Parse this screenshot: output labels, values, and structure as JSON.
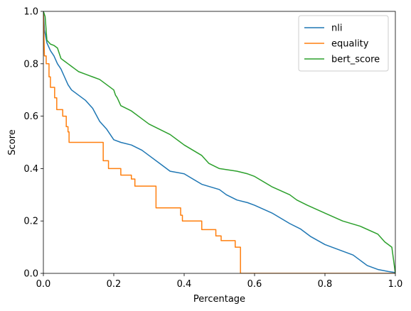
{
  "chart_data": {
    "type": "line",
    "title": "",
    "xlabel": "Percentage",
    "ylabel": "Score",
    "xlim": [
      0,
      1
    ],
    "ylim": [
      0,
      1
    ],
    "xticks": [
      "0.0",
      "0.2",
      "0.4",
      "0.6",
      "0.8",
      "1.0"
    ],
    "yticks": [
      "0.0",
      "0.2",
      "0.4",
      "0.6",
      "0.8",
      "1.0"
    ],
    "grid": false,
    "legend_position": "top-right",
    "series": [
      {
        "name": "nli",
        "color": "#1f77b4",
        "step": false,
        "points": [
          [
            0.0,
            1.0
          ],
          [
            0.003,
            0.93
          ],
          [
            0.01,
            0.88
          ],
          [
            0.02,
            0.85
          ],
          [
            0.03,
            0.83
          ],
          [
            0.04,
            0.8
          ],
          [
            0.05,
            0.78
          ],
          [
            0.06,
            0.75
          ],
          [
            0.07,
            0.72
          ],
          [
            0.08,
            0.7
          ],
          [
            0.1,
            0.68
          ],
          [
            0.12,
            0.66
          ],
          [
            0.14,
            0.63
          ],
          [
            0.16,
            0.58
          ],
          [
            0.18,
            0.55
          ],
          [
            0.2,
            0.51
          ],
          [
            0.22,
            0.5
          ],
          [
            0.25,
            0.49
          ],
          [
            0.28,
            0.47
          ],
          [
            0.3,
            0.45
          ],
          [
            0.33,
            0.42
          ],
          [
            0.36,
            0.39
          ],
          [
            0.4,
            0.38
          ],
          [
            0.45,
            0.34
          ],
          [
            0.5,
            0.32
          ],
          [
            0.52,
            0.3
          ],
          [
            0.55,
            0.28
          ],
          [
            0.58,
            0.27
          ],
          [
            0.6,
            0.26
          ],
          [
            0.65,
            0.23
          ],
          [
            0.7,
            0.19
          ],
          [
            0.73,
            0.17
          ],
          [
            0.76,
            0.14
          ],
          [
            0.8,
            0.11
          ],
          [
            0.84,
            0.09
          ],
          [
            0.88,
            0.07
          ],
          [
            0.9,
            0.05
          ],
          [
            0.92,
            0.03
          ],
          [
            0.95,
            0.015
          ],
          [
            0.98,
            0.007
          ],
          [
            1.0,
            0.003
          ]
        ]
      },
      {
        "name": "equality",
        "color": "#ff7f0e",
        "step": true,
        "points": [
          [
            0.0,
            1.0
          ],
          [
            0.003,
            0.83
          ],
          [
            0.008,
            0.83
          ],
          [
            0.008,
            0.8
          ],
          [
            0.016,
            0.8
          ],
          [
            0.016,
            0.75
          ],
          [
            0.02,
            0.75
          ],
          [
            0.02,
            0.71
          ],
          [
            0.032,
            0.71
          ],
          [
            0.032,
            0.67
          ],
          [
            0.038,
            0.67
          ],
          [
            0.038,
            0.625
          ],
          [
            0.055,
            0.625
          ],
          [
            0.055,
            0.6
          ],
          [
            0.065,
            0.6
          ],
          [
            0.065,
            0.56
          ],
          [
            0.07,
            0.56
          ],
          [
            0.07,
            0.54
          ],
          [
            0.073,
            0.54
          ],
          [
            0.073,
            0.5
          ],
          [
            0.17,
            0.5
          ],
          [
            0.17,
            0.43
          ],
          [
            0.185,
            0.43
          ],
          [
            0.185,
            0.4
          ],
          [
            0.22,
            0.4
          ],
          [
            0.22,
            0.375
          ],
          [
            0.25,
            0.375
          ],
          [
            0.25,
            0.36
          ],
          [
            0.26,
            0.36
          ],
          [
            0.26,
            0.333
          ],
          [
            0.32,
            0.333
          ],
          [
            0.32,
            0.25
          ],
          [
            0.39,
            0.25
          ],
          [
            0.39,
            0.222
          ],
          [
            0.395,
            0.222
          ],
          [
            0.395,
            0.2
          ],
          [
            0.45,
            0.2
          ],
          [
            0.45,
            0.167
          ],
          [
            0.49,
            0.167
          ],
          [
            0.49,
            0.143
          ],
          [
            0.505,
            0.143
          ],
          [
            0.505,
            0.125
          ],
          [
            0.545,
            0.125
          ],
          [
            0.545,
            0.1
          ],
          [
            0.56,
            0.1
          ],
          [
            0.56,
            0.0
          ],
          [
            1.0,
            0.0
          ]
        ]
      },
      {
        "name": "bert_score",
        "color": "#2ca02c",
        "step": false,
        "points": [
          [
            0.0,
            1.0
          ],
          [
            0.005,
            0.98
          ],
          [
            0.01,
            0.89
          ],
          [
            0.02,
            0.875
          ],
          [
            0.03,
            0.87
          ],
          [
            0.04,
            0.86
          ],
          [
            0.05,
            0.82
          ],
          [
            0.06,
            0.81
          ],
          [
            0.07,
            0.8
          ],
          [
            0.08,
            0.79
          ],
          [
            0.09,
            0.78
          ],
          [
            0.1,
            0.77
          ],
          [
            0.12,
            0.76
          ],
          [
            0.14,
            0.75
          ],
          [
            0.16,
            0.74
          ],
          [
            0.18,
            0.72
          ],
          [
            0.2,
            0.7
          ],
          [
            0.205,
            0.68
          ],
          [
            0.21,
            0.67
          ],
          [
            0.22,
            0.64
          ],
          [
            0.25,
            0.62
          ],
          [
            0.28,
            0.59
          ],
          [
            0.3,
            0.57
          ],
          [
            0.33,
            0.55
          ],
          [
            0.36,
            0.53
          ],
          [
            0.4,
            0.49
          ],
          [
            0.45,
            0.45
          ],
          [
            0.47,
            0.42
          ],
          [
            0.5,
            0.4
          ],
          [
            0.55,
            0.39
          ],
          [
            0.58,
            0.38
          ],
          [
            0.6,
            0.37
          ],
          [
            0.65,
            0.33
          ],
          [
            0.7,
            0.3
          ],
          [
            0.72,
            0.28
          ],
          [
            0.75,
            0.26
          ],
          [
            0.8,
            0.23
          ],
          [
            0.85,
            0.2
          ],
          [
            0.9,
            0.18
          ],
          [
            0.95,
            0.15
          ],
          [
            0.97,
            0.12
          ],
          [
            0.99,
            0.1
          ],
          [
            1.0,
            0.0
          ]
        ]
      }
    ]
  }
}
